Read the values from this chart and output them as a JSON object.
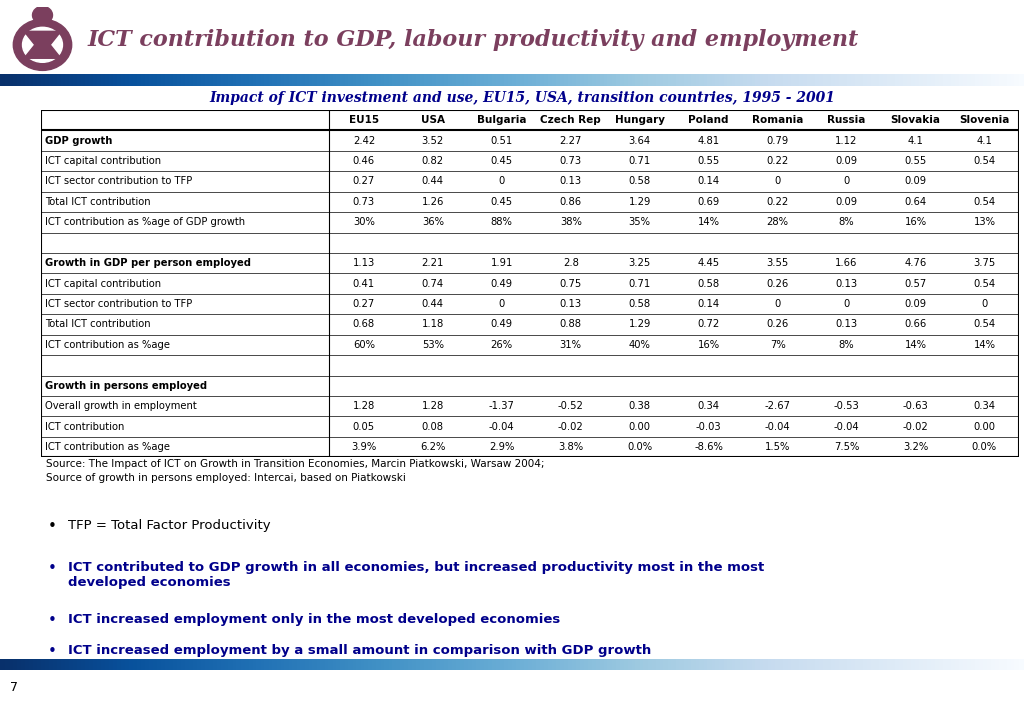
{
  "title": "ICT contribution to GDP, labour productivity and employment",
  "subtitle": "Impact of ICT investment and use, EU15, USA, transition countries, 1995 - 2001",
  "columns": [
    "",
    "EU15",
    "USA",
    "Bulgaria",
    "Czech Rep",
    "Hungary",
    "Poland",
    "Romania",
    "Russia",
    "Slovakia",
    "Slovenia"
  ],
  "table_data": [
    [
      "GDP growth",
      "2.42",
      "3.52",
      "0.51",
      "2.27",
      "3.64",
      "4.81",
      "0.79",
      "1.12",
      "4.1",
      "4.1"
    ],
    [
      "ICT capital contribution",
      "0.46",
      "0.82",
      "0.45",
      "0.73",
      "0.71",
      "0.55",
      "0.22",
      "0.09",
      "0.55",
      "0.54"
    ],
    [
      "ICT sector contribution to TFP",
      "0.27",
      "0.44",
      "0",
      "0.13",
      "0.58",
      "0.14",
      "0",
      "0",
      "0.09",
      ""
    ],
    [
      "Total ICT contribution",
      "0.73",
      "1.26",
      "0.45",
      "0.86",
      "1.29",
      "0.69",
      "0.22",
      "0.09",
      "0.64",
      "0.54"
    ],
    [
      "ICT contribution as %age of GDP growth",
      "30%",
      "36%",
      "88%",
      "38%",
      "35%",
      "14%",
      "28%",
      "8%",
      "16%",
      "13%"
    ],
    [
      "",
      "",
      "",
      "",
      "",
      "",
      "",
      "",
      "",
      "",
      ""
    ],
    [
      "Growth in GDP per person employed",
      "1.13",
      "2.21",
      "1.91",
      "2.8",
      "3.25",
      "4.45",
      "3.55",
      "1.66",
      "4.76",
      "3.75"
    ],
    [
      "ICT capital contribution",
      "0.41",
      "0.74",
      "0.49",
      "0.75",
      "0.71",
      "0.58",
      "0.26",
      "0.13",
      "0.57",
      "0.54"
    ],
    [
      "ICT sector contribution to TFP",
      "0.27",
      "0.44",
      "0",
      "0.13",
      "0.58",
      "0.14",
      "0",
      "0",
      "0.09",
      "0"
    ],
    [
      "Total ICT contribution",
      "0.68",
      "1.18",
      "0.49",
      "0.88",
      "1.29",
      "0.72",
      "0.26",
      "0.13",
      "0.66",
      "0.54"
    ],
    [
      "ICT contribution as %age",
      "60%",
      "53%",
      "26%",
      "31%",
      "40%",
      "16%",
      "7%",
      "8%",
      "14%",
      "14%"
    ],
    [
      "",
      "",
      "",
      "",
      "",
      "",
      "",
      "",
      "",
      "",
      ""
    ],
    [
      "Growth in persons employed",
      "",
      "",
      "",
      "",
      "",
      "",
      "",
      "",
      "",
      ""
    ],
    [
      "Overall growth in employment",
      "1.28",
      "1.28",
      "-1.37",
      "-0.52",
      "0.38",
      "0.34",
      "-2.67",
      "-0.53",
      "-0.63",
      "0.34"
    ],
    [
      "ICT contribution",
      "0.05",
      "0.08",
      "-0.04",
      "-0.02",
      "0.00",
      "-0.03",
      "-0.04",
      "-0.04",
      "-0.02",
      "0.00"
    ],
    [
      "ICT contribution as %age",
      "3.9%",
      "6.2%",
      "2.9%",
      "3.8%",
      "0.0%",
      "-8.6%",
      "1.5%",
      "7.5%",
      "3.2%",
      "0.0%"
    ]
  ],
  "bold_rows": [
    0,
    6,
    12
  ],
  "source_text": "Source: The Impact of ICT on Growth in Transition Economies, Marcin Piatkowski, Warsaw 2004;\nSource of growth in persons employed: Intercai, based on Piatkowski",
  "bullets": [
    {
      "text": "TFP = Total Factor Productivity",
      "bold": false,
      "color": "#000000"
    },
    {
      "text": "ICT contributed to GDP growth in all economies, but increased productivity most in the most\ndeveloped economies",
      "bold": true,
      "color": "#00008B"
    },
    {
      "text": "ICT increased employment only in the most developed economies",
      "bold": true,
      "color": "#00008B"
    },
    {
      "text": "ICT increased employment by a small amount in comparison with GDP growth",
      "bold": true,
      "color": "#00008B"
    }
  ],
  "bg_color": "#FFFFFF",
  "title_color": "#7B3F5E",
  "subtitle_color": "#00008B",
  "logo_color": "#7B3F5E",
  "page_number": "7"
}
